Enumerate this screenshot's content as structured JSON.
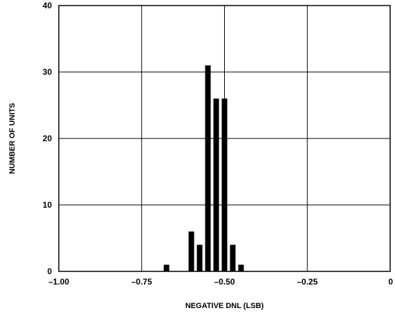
{
  "chart_data": {
    "type": "bar",
    "title": "",
    "xlabel": "NEGATIVE DNL (LSB)",
    "ylabel": "NUMBER OF UNITS",
    "xlim": [
      -1.0,
      0
    ],
    "ylim": [
      0,
      40
    ],
    "x_ticks": [
      -1.0,
      -0.75,
      -0.5,
      -0.25,
      0
    ],
    "x_tick_labels": [
      "–1.00",
      "–0.75",
      "–0.50",
      "–0.25",
      "0"
    ],
    "y_ticks": [
      0,
      10,
      20,
      30,
      40
    ],
    "y_tick_labels": [
      "0",
      "10",
      "20",
      "30",
      "40"
    ],
    "grid": true,
    "bar_color": "#000000",
    "bins": [
      {
        "x": -0.675,
        "count": 1
      },
      {
        "x": -0.6,
        "count": 6
      },
      {
        "x": -0.575,
        "count": 4
      },
      {
        "x": -0.55,
        "count": 31
      },
      {
        "x": -0.525,
        "count": 26
      },
      {
        "x": -0.5,
        "count": 26
      },
      {
        "x": -0.475,
        "count": 4
      },
      {
        "x": -0.45,
        "count": 1
      }
    ]
  }
}
